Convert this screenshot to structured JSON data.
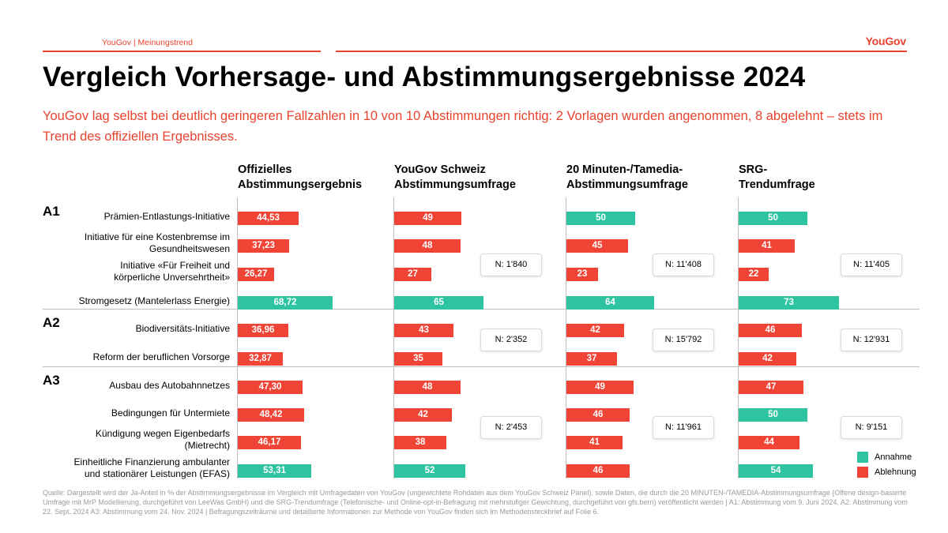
{
  "header": {
    "left": "YouGov | Meinungstrend",
    "brand": "YouGov"
  },
  "title": "Vergleich Vorhersage- und Abstimmungsergebnisse 2024",
  "subtitle": "YouGov lag selbst bei deutlich geringeren Fallzahlen in 10 von 10 Abstimmungen richtig: 2 Vorlagen wurden angenommen, 8 abgelehnt – stets im Trend des offiziellen Ergebnisses.",
  "colors": {
    "annahme": "#2ec4a2",
    "ablehnung": "#f04436"
  },
  "legend": {
    "annahme": "Annahme",
    "ablehnung": "Ablehnung"
  },
  "chart_data": {
    "type": "bar",
    "title": "Vergleich Vorhersage- und Abstimmungsergebnisse 2024",
    "unit": "Ja-Anteil in %",
    "threshold": 50,
    "groups": [
      "A1",
      "A2",
      "A3"
    ],
    "columns": [
      {
        "l1": "Offizielles",
        "l2": "Abstimmungsergebnis"
      },
      {
        "l1": "YouGov Schweiz",
        "l2": "Abstimmungsumfrage"
      },
      {
        "l1": "20 Minuten-/Tamedia-",
        "l2": "Abstimmungsumfrage"
      },
      {
        "l1": "SRG-",
        "l2": "Trendumfrage"
      }
    ],
    "rows": [
      {
        "group": "A1",
        "label": "Prämien-Entlastungs-Initiative",
        "values": [
          "44,53",
          "49",
          "50",
          "50"
        ],
        "accepted": [
          false,
          false,
          true,
          true
        ]
      },
      {
        "group": "A1",
        "label": "Initiative für eine Kostenbremse im Gesundheitswesen",
        "values": [
          "37,23",
          "48",
          "45",
          "41"
        ],
        "accepted": [
          false,
          false,
          false,
          false
        ]
      },
      {
        "group": "A1",
        "label": "Initiative «Für Freiheit und körperliche Unversehrtheit»",
        "values": [
          "26,27",
          "27",
          "23",
          "22"
        ],
        "accepted": [
          false,
          false,
          false,
          false
        ]
      },
      {
        "group": "A1",
        "label": "Stromgesetz (Mantelerlass Energie)",
        "values": [
          "68,72",
          "65",
          "64",
          "73"
        ],
        "accepted": [
          true,
          true,
          true,
          true
        ]
      },
      {
        "group": "A2",
        "label": "Biodiversitäts-Initiative",
        "values": [
          "36,96",
          "43",
          "42",
          "46"
        ],
        "accepted": [
          false,
          false,
          false,
          false
        ]
      },
      {
        "group": "A2",
        "label": "Reform der beruflichen Vorsorge",
        "values": [
          "32,87",
          "35",
          "37",
          "42"
        ],
        "accepted": [
          false,
          false,
          false,
          false
        ]
      },
      {
        "group": "A3",
        "label": "Ausbau des Autobahnnetzes",
        "values": [
          "47,30",
          "48",
          "49",
          "47"
        ],
        "accepted": [
          false,
          false,
          false,
          false
        ]
      },
      {
        "group": "A3",
        "label": "Bedingungen für Untermiete",
        "values": [
          "48,42",
          "42",
          "46",
          "50"
        ],
        "accepted": [
          false,
          false,
          false,
          true
        ]
      },
      {
        "group": "A3",
        "label": "Kündigung wegen Eigenbedarfs (Mietrecht)",
        "values": [
          "46,17",
          "38",
          "41",
          "44"
        ],
        "accepted": [
          false,
          false,
          false,
          false
        ]
      },
      {
        "group": "A3",
        "label": "Einheitliche Finanzierung ambulanter und stationärer Leistungen (EFAS)",
        "values": [
          "53,31",
          "52",
          "46",
          "54"
        ],
        "accepted": [
          true,
          true,
          false,
          true
        ]
      }
    ],
    "sample_sizes": [
      {
        "group": "A1",
        "values": [
          "N: 1'840",
          "N: 11'408",
          "N: 11'405"
        ]
      },
      {
        "group": "A2",
        "values": [
          "N: 2'352",
          "N: 15'792",
          "N: 12'931"
        ]
      },
      {
        "group": "A3",
        "values": [
          "N: 2'453",
          "N: 11'961",
          "N: 9'151"
        ]
      }
    ]
  },
  "source_note": "Quelle: Dargestellt wird der Ja-Anteil in % der Abstimmungsergebnisse im Vergleich mit Umfragedaten von YouGov (ungewichtete Rohdaten aus dem YouGov Schweiz Panel), sowie Daten, die durch die 20 MINUTEN-/TAMEDIA-Abstimmungsumfrage (Offene design-basierte Umfrage mit MrP Modellierung, durchgeführt von LeeWas GmbH) und die SRG-Trendumfrage (Telefonische- und Online-opt-in-Befragung mit mehrstufiger Gewichtung, durchgeführt von gfs.bern) veröffentlicht werden | A1: Abstimmung vom 9. Juni 2024, A2: Abstimmung vom 22. Sept. 2024 A3: Abstimmung vom 24. Nov. 2024 | Befragungszeiträume und detaillierte Informationen zur Methode von YouGov finden sich im Methodensteckbrief auf Folie 6."
}
